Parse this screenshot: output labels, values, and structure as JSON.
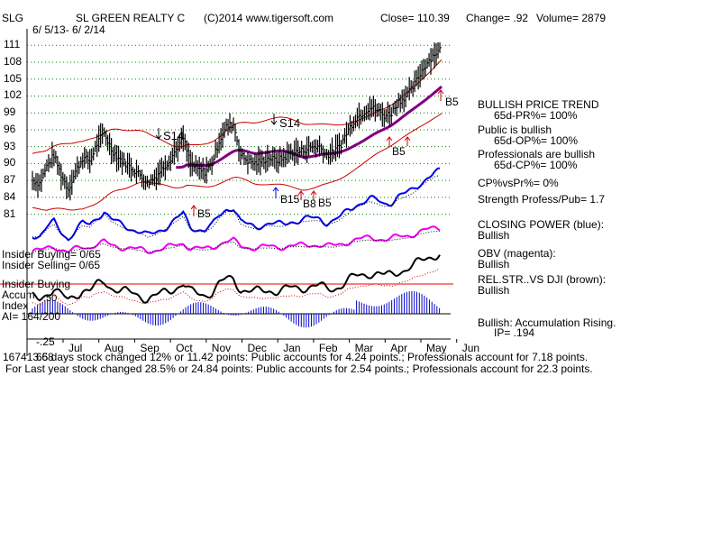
{
  "header": {
    "ticker": "SLG",
    "company": "SL GREEN REALTY C",
    "copyright": "(C)2014 www.tigersoft.com",
    "close": "Close=  110.39",
    "change": "Change= .92",
    "volume": "Volume=  2879",
    "date_range": "6/ 5/13- 6/ 2/14"
  },
  "left_panel": {
    "insider_buying": "Insider Buying= 0/65",
    "insider_selling": "Insider Selling= 0/65",
    "insider_buying_label": "Insider Buying",
    "accum_label": "Accum",
    "index_label": "Index",
    "ai": "AI= 164/200",
    "accum_upper_tick": ".50",
    "accum_lower_tick": "-.25",
    "overprint": "167413.68"
  },
  "right_panel": {
    "trend_title": "BULLISH PRICE TREND",
    "trend_pr": "65d-PR%= 100%",
    "public": "Public is bullish",
    "public_op": "65d-OP%= 100%",
    "pros": "Professionals are bullish",
    "pros_cp": "65d-CP%= 100%",
    "cpvspr": "CP%vsPr%=  0%",
    "strength": "Strength Profess/Pub= 1.7",
    "closing_power": "CLOSING POWER (blue):",
    "closing_power_val": "Bullish",
    "obv": "OBV (magenta):",
    "obv_val": "Bullish",
    "relstr": "REL.STR..VS DJI (brown):",
    "relstr_val": "Bullish",
    "accum_status": "Bullish: Accumulation Rising.",
    "ip": "IP=  .194"
  },
  "signals": {
    "s14_a": "S14",
    "s14_b": "S14",
    "b5_oct": "B5",
    "b15": "B15",
    "b5_jan": "B5",
    "b5_apr": "B5",
    "b5_end": "B5",
    "b8": "B8"
  },
  "footer": {
    "line1": "65 days stock changed  12% or  11.42 points:  Public accounts for  4.24 points.;  Professionals account for  7.18 points.",
    "line2": "For Last year stock changed  28.5% or  24.84 points:  Public accounts for  2.54 points.;  Professionals account for  22.3 points."
  },
  "colors": {
    "price": "#000000",
    "bands": "#cc0000",
    "moving_average": "#800080",
    "closing_power": "#0000ee",
    "obv": "#ee00ee",
    "grid": "#008000",
    "accum": "#0000cc",
    "rel_str": "#000000"
  },
  "chart_data": {
    "type": "line",
    "title": "SL GREEN REALTY C",
    "x_ticks": [
      "Jul",
      "Aug",
      "Sep",
      "Oct",
      "Nov",
      "Dec",
      "Jan",
      "Feb",
      "Mar",
      "Apr",
      "May",
      "Jun"
    ],
    "y_ticks": [
      111,
      108,
      105,
      102,
      99,
      96,
      93,
      90,
      87,
      84,
      81
    ],
    "ylim": [
      79.5,
      112
    ],
    "grid": true,
    "price_series": {
      "name": "Close",
      "x_months": [
        0.0,
        0.2,
        0.4,
        0.6,
        0.8,
        1.0,
        1.2,
        1.4,
        1.6,
        1.8,
        2.0,
        2.2,
        2.4,
        2.6,
        2.8,
        3.0,
        3.2,
        3.4,
        3.6,
        3.8,
        4.0,
        4.2,
        4.4,
        4.6,
        4.8,
        5.0,
        5.2,
        5.4,
        5.6,
        5.8,
        6.0,
        6.2,
        6.4,
        6.6,
        6.8,
        7.0,
        7.2,
        7.4,
        7.6,
        7.8,
        8.0,
        8.2,
        8.4,
        8.6,
        8.8,
        9.0,
        9.2,
        9.4,
        9.6,
        9.8,
        10.0,
        10.2,
        10.4,
        10.6,
        10.8,
        11.0,
        11.2,
        11.4
      ],
      "values": [
        87,
        86.5,
        89.5,
        91.5,
        88,
        85.5,
        88.5,
        91,
        90.5,
        93.5,
        95.5,
        92.5,
        91,
        90,
        89,
        88,
        86.5,
        87.5,
        89,
        90.5,
        92.5,
        94.5,
        90,
        89,
        88.5,
        90,
        94,
        96.5,
        97,
        91.5,
        90.5,
        90,
        90.5,
        91,
        90.5,
        91,
        92,
        92,
        92.5,
        93,
        93,
        91.5,
        92,
        93.5,
        96,
        98,
        99,
        100,
        99.5,
        98.5,
        99,
        101,
        102,
        103.5,
        106,
        108,
        109.5,
        110.39
      ]
    },
    "series_names": [
      "CLOSING POWER",
      "OBV",
      "REL.STR..VS DJI",
      "Accum Index"
    ]
  }
}
